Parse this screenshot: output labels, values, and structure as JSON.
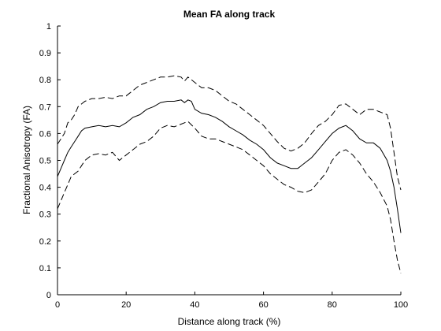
{
  "chart_data": {
    "type": "line",
    "title": "Mean FA along track",
    "xlabel": "Distance along track (%)",
    "ylabel": "Fractional Anisotropy (FA)",
    "xlim": [
      0,
      100
    ],
    "ylim": [
      0,
      1
    ],
    "xticks": [
      "0",
      "20",
      "40",
      "60",
      "80",
      "100"
    ],
    "yticks": [
      "0",
      "0.1",
      "0.2",
      "0.3",
      "0.4",
      "0.5",
      "0.6",
      "0.7",
      "0.8",
      "0.9",
      "1"
    ],
    "grid": false,
    "legend": "none",
    "colors": {
      "line": "#000000",
      "axis": "#000000",
      "background": "#ffffff"
    },
    "series": [
      {
        "style": "solid",
        "x": [
          0,
          1,
          2,
          3,
          4,
          5,
          6,
          7,
          8,
          10,
          12,
          14,
          16,
          18,
          20,
          22,
          24,
          26,
          28,
          30,
          32,
          34,
          36,
          37,
          38,
          39,
          40,
          42,
          44,
          46,
          48,
          50,
          52,
          54,
          56,
          58,
          60,
          62,
          64,
          66,
          68,
          70,
          72,
          74,
          76,
          78,
          80,
          82,
          84,
          86,
          88,
          90,
          92,
          93,
          94,
          96,
          97,
          98,
          99,
          100
        ],
        "y": [
          0.44,
          0.47,
          0.5,
          0.53,
          0.55,
          0.57,
          0.59,
          0.61,
          0.62,
          0.625,
          0.63,
          0.625,
          0.63,
          0.625,
          0.64,
          0.66,
          0.67,
          0.69,
          0.7,
          0.715,
          0.72,
          0.72,
          0.725,
          0.715,
          0.725,
          0.72,
          0.69,
          0.675,
          0.67,
          0.66,
          0.645,
          0.625,
          0.61,
          0.595,
          0.575,
          0.56,
          0.54,
          0.51,
          0.49,
          0.48,
          0.47,
          0.47,
          0.49,
          0.51,
          0.54,
          0.57,
          0.6,
          0.62,
          0.63,
          0.61,
          0.58,
          0.565,
          0.565,
          0.555,
          0.545,
          0.5,
          0.46,
          0.4,
          0.32,
          0.23
        ]
      },
      {
        "style": "dashed",
        "x": [
          0,
          1,
          2,
          3,
          4,
          5,
          6,
          7,
          8,
          10,
          12,
          14,
          16,
          18,
          20,
          22,
          24,
          26,
          28,
          30,
          32,
          34,
          36,
          37,
          38,
          40,
          42,
          44,
          46,
          48,
          50,
          52,
          54,
          56,
          58,
          60,
          62,
          64,
          66,
          68,
          70,
          72,
          74,
          76,
          78,
          80,
          82,
          84,
          86,
          88,
          90,
          92,
          94,
          96,
          97,
          98,
          99,
          100
        ],
        "y": [
          0.56,
          0.58,
          0.6,
          0.64,
          0.65,
          0.67,
          0.7,
          0.71,
          0.72,
          0.73,
          0.73,
          0.735,
          0.73,
          0.74,
          0.74,
          0.76,
          0.78,
          0.79,
          0.8,
          0.81,
          0.81,
          0.815,
          0.81,
          0.795,
          0.81,
          0.79,
          0.77,
          0.77,
          0.76,
          0.74,
          0.72,
          0.71,
          0.69,
          0.67,
          0.65,
          0.63,
          0.6,
          0.57,
          0.545,
          0.535,
          0.545,
          0.565,
          0.6,
          0.63,
          0.645,
          0.67,
          0.705,
          0.71,
          0.69,
          0.67,
          0.69,
          0.69,
          0.68,
          0.67,
          0.62,
          0.53,
          0.44,
          0.39
        ]
      },
      {
        "style": "dashed",
        "x": [
          0,
          1,
          2,
          3,
          4,
          5,
          6,
          7,
          8,
          10,
          12,
          14,
          16,
          18,
          20,
          22,
          24,
          26,
          28,
          30,
          32,
          34,
          36,
          37,
          38,
          40,
          42,
          44,
          46,
          48,
          50,
          52,
          54,
          56,
          58,
          60,
          62,
          64,
          66,
          68,
          70,
          72,
          74,
          76,
          78,
          80,
          82,
          84,
          86,
          88,
          90,
          92,
          94,
          96,
          97,
          98,
          99,
          100
        ],
        "y": [
          0.32,
          0.35,
          0.38,
          0.41,
          0.44,
          0.45,
          0.46,
          0.48,
          0.5,
          0.52,
          0.525,
          0.52,
          0.53,
          0.5,
          0.52,
          0.54,
          0.56,
          0.57,
          0.59,
          0.62,
          0.63,
          0.625,
          0.635,
          0.64,
          0.645,
          0.62,
          0.59,
          0.58,
          0.58,
          0.57,
          0.56,
          0.55,
          0.54,
          0.52,
          0.5,
          0.48,
          0.45,
          0.43,
          0.41,
          0.4,
          0.385,
          0.38,
          0.39,
          0.42,
          0.45,
          0.5,
          0.53,
          0.54,
          0.52,
          0.49,
          0.45,
          0.42,
          0.38,
          0.33,
          0.28,
          0.2,
          0.13,
          0.08
        ]
      }
    ]
  }
}
